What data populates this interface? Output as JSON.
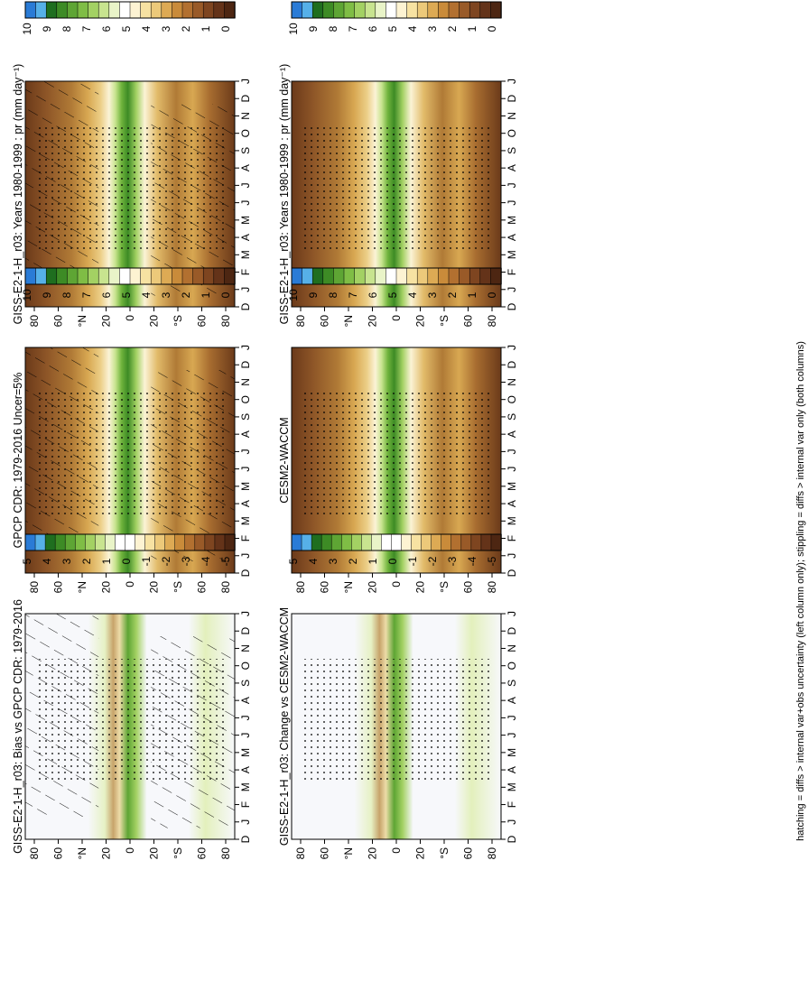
{
  "footnote": "hatching = diffs > internal var+obs uncertainty (left column only); stippling = diffs > internal var only (both columns)",
  "months": [
    "D",
    "J",
    "F",
    "M",
    "A",
    "M",
    "J",
    "J",
    "A",
    "S",
    "O",
    "N",
    "D",
    "J"
  ],
  "lat_labels": [
    "80",
    "60",
    "°N",
    "20",
    "0",
    "20",
    "°S",
    "60",
    "80"
  ],
  "colorbar_abs": {
    "labels": [
      "10",
      "9",
      "8",
      "7",
      "6",
      "5",
      "4",
      "3",
      "2",
      "1",
      "0"
    ],
    "colors": [
      "#2a7bd6",
      "#56b0e8",
      "#1f6e1f",
      "#3d8b25",
      "#5ea534",
      "#7fbd45",
      "#a3d163",
      "#c8e48f",
      "#e9f4c8",
      "#ffffff",
      "#fdf3d2",
      "#f7e2a2",
      "#ecc97a",
      "#ddaa54",
      "#c98b3a",
      "#b27030",
      "#995a28",
      "#7e4520",
      "#643319",
      "#4d2612"
    ]
  },
  "colorbar_diff": {
    "labels": [
      "5",
      "4",
      "3",
      "2",
      "1",
      "0",
      "-1",
      "-2",
      "-3",
      "-4",
      "-5"
    ],
    "colors": [
      "#2a7bd6",
      "#56b0e8",
      "#1f6e1f",
      "#3d8b25",
      "#5ea534",
      "#7fbd45",
      "#a3d163",
      "#c8e48f",
      "#e9f4c8",
      "#ffffff",
      "#ffffff",
      "#fdf3d2",
      "#f7e2a2",
      "#ecc97a",
      "#ddaa54",
      "#c98b3a",
      "#b27030",
      "#995a28",
      "#7e4520",
      "#643319",
      "#4d2612"
    ]
  },
  "chart_data": [
    {
      "type": "heatmap",
      "title": "GISS-E2-1-H_r03: Years 1980-1999 : pr (mm day⁻¹)",
      "x_categories": [
        "D",
        "J",
        "F",
        "M",
        "A",
        "M",
        "J",
        "J",
        "A",
        "S",
        "O",
        "N",
        "D",
        "J"
      ],
      "y_labels": [
        "80",
        "60",
        "°N",
        "20",
        "0",
        "20",
        "°S",
        "60",
        "80"
      ],
      "colorbar": [
        0,
        1,
        2,
        3,
        4,
        5,
        6,
        7,
        8,
        9,
        10
      ],
      "overlay": "hatching + stippling"
    },
    {
      "type": "heatmap",
      "title": "GISS-E2-1-H_r03: Years 1980-1999 : pr (mm day⁻¹)",
      "x_categories": [
        "D",
        "J",
        "F",
        "M",
        "A",
        "M",
        "J",
        "J",
        "A",
        "S",
        "O",
        "N",
        "D",
        "J"
      ],
      "y_labels": [
        "80",
        "60",
        "°N",
        "20",
        "0",
        "20",
        "°S",
        "60",
        "80"
      ],
      "colorbar": [
        0,
        1,
        2,
        3,
        4,
        5,
        6,
        7,
        8,
        9,
        10
      ],
      "overlay": "stippling"
    },
    {
      "type": "heatmap",
      "title": "GPCP CDR: 1979-2016 Uncer=5%",
      "x_categories": [
        "D",
        "J",
        "F",
        "M",
        "A",
        "M",
        "J",
        "J",
        "A",
        "S",
        "O",
        "N",
        "D",
        "J"
      ],
      "y_labels": [
        "80",
        "60",
        "°N",
        "20",
        "0",
        "20",
        "°S",
        "60",
        "80"
      ],
      "colorbar": [
        0,
        1,
        2,
        3,
        4,
        5,
        6,
        7,
        8,
        9,
        10
      ],
      "overlay": "hatching + stippling"
    },
    {
      "type": "heatmap",
      "title": "CESM2-WACCM",
      "x_categories": [
        "D",
        "J",
        "F",
        "M",
        "A",
        "M",
        "J",
        "J",
        "A",
        "S",
        "O",
        "N",
        "D",
        "J"
      ],
      "y_labels": [
        "80",
        "60",
        "°N",
        "20",
        "0",
        "20",
        "°S",
        "60",
        "80"
      ],
      "colorbar": [
        0,
        1,
        2,
        3,
        4,
        5,
        6,
        7,
        8,
        9,
        10
      ],
      "overlay": "stippling"
    },
    {
      "type": "heatmap",
      "title": "GISS-E2-1-H_r03: Bias vs GPCP CDR: 1979-2016",
      "x_categories": [
        "D",
        "J",
        "F",
        "M",
        "A",
        "M",
        "J",
        "J",
        "A",
        "S",
        "O",
        "N",
        "D",
        "J"
      ],
      "y_labels": [
        "80",
        "60",
        "°N",
        "20",
        "0",
        "20",
        "°S",
        "60",
        "80"
      ],
      "colorbar": [
        -5,
        -4,
        -3,
        -2,
        -1,
        0,
        1,
        2,
        3,
        4,
        5
      ],
      "overlay": "hatching + stippling"
    },
    {
      "type": "heatmap",
      "title": "GISS-E2-1-H_r03: Change vs CESM2-WACCM",
      "x_categories": [
        "D",
        "J",
        "F",
        "M",
        "A",
        "M",
        "J",
        "J",
        "A",
        "S",
        "O",
        "N",
        "D",
        "J"
      ],
      "y_labels": [
        "80",
        "60",
        "°N",
        "20",
        "0",
        "20",
        "°S",
        "60",
        "80"
      ],
      "colorbar": [
        -5,
        -4,
        -3,
        -2,
        -1,
        0,
        1,
        2,
        3,
        4,
        5
      ],
      "overlay": "stippling"
    }
  ]
}
